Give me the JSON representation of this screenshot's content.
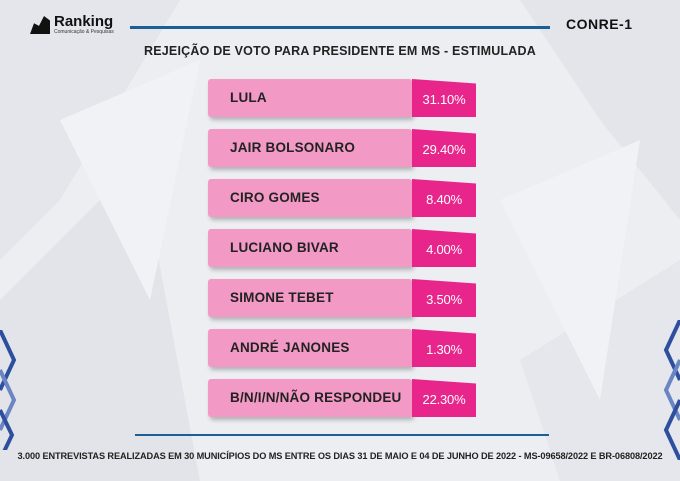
{
  "header": {
    "brand_left": "Ranking",
    "brand_left_sub": "Comunicação & Pesquisas",
    "brand_right": "CONRE-1"
  },
  "chart_data": {
    "type": "bar",
    "title": "REJEIÇÃO DE VOTO PARA PRESIDENTE EM MS - ESTIMULADA",
    "categories": [
      "LULA",
      "JAIR BOLSONARO",
      "CIRO GOMES",
      "LUCIANO BIVAR",
      "SIMONE TEBET",
      "ANDRÉ JANONES",
      "B/N/I/N/NÃO RESPONDEU"
    ],
    "values": [
      31.1,
      29.4,
      8.4,
      4.0,
      3.5,
      1.3,
      22.3
    ],
    "labels": [
      "31.10%",
      "29.40%",
      "8.40%",
      "4.00%",
      "3.50%",
      "1.30%",
      "22.30%"
    ],
    "colors": {
      "name_box": "#f29ac5",
      "value_box": "#e7258a"
    }
  },
  "footer": {
    "note": "3.000 ENTREVISTAS REALIZADAS EM 30 MUNICÍPIOS DO MS ENTRE OS DIAS 31 DE MAIO E 04 DE JUNHO DE 2022 - MS-09658/2022 E BR-06808/2022"
  }
}
